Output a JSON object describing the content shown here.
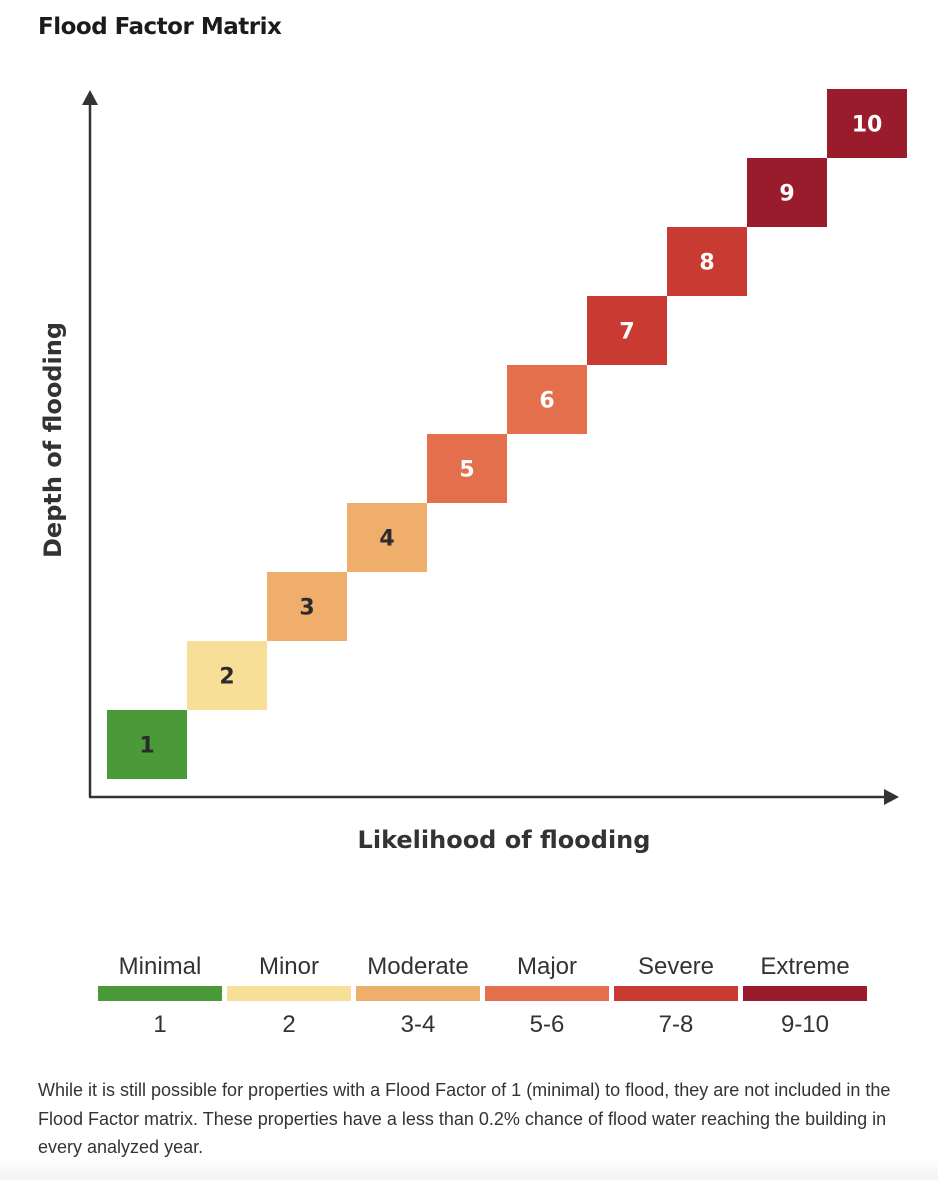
{
  "title": "Flood Factor Matrix",
  "chart_data": {
    "type": "heatmap",
    "xlabel": "Likelihood of flooding",
    "ylabel": "Depth of flooding",
    "cells": [
      {
        "label": "1",
        "level": 1,
        "color": "#4b9a3a",
        "text_color": "#2b2b2b"
      },
      {
        "label": "2",
        "level": 2,
        "color": "#f8df98",
        "text_color": "#2b2b2b"
      },
      {
        "label": "3",
        "level": 3,
        "color": "#f0ae6c",
        "text_color": "#2b2b2b"
      },
      {
        "label": "4",
        "level": 4,
        "color": "#f0ae6c",
        "text_color": "#2b2b2b"
      },
      {
        "label": "5",
        "level": 5,
        "color": "#e46f4c",
        "text_color": "#ffffff"
      },
      {
        "label": "6",
        "level": 6,
        "color": "#e46f4c",
        "text_color": "#ffffff"
      },
      {
        "label": "7",
        "level": 7,
        "color": "#c93b32",
        "text_color": "#ffffff"
      },
      {
        "label": "8",
        "level": 8,
        "color": "#c93b32",
        "text_color": "#ffffff"
      },
      {
        "label": "9",
        "level": 9,
        "color": "#9a1b2c",
        "text_color": "#ffffff"
      },
      {
        "label": "10",
        "level": 10,
        "color": "#9a1b2c",
        "text_color": "#ffffff"
      }
    ]
  },
  "legend": [
    {
      "name": "Minimal",
      "range": "1",
      "color": "#4b9a3a"
    },
    {
      "name": "Minor",
      "range": "2",
      "color": "#f8df98"
    },
    {
      "name": "Moderate",
      "range": "3-4",
      "color": "#f0ae6c"
    },
    {
      "name": "Major",
      "range": "5-6",
      "color": "#e46f4c"
    },
    {
      "name": "Severe",
      "range": "7-8",
      "color": "#c93b32"
    },
    {
      "name": "Extreme",
      "range": "9-10",
      "color": "#9a1b2c"
    }
  ],
  "note": "While it is still possible for properties with a Flood Factor of 1 (minimal) to flood, they are not included in the Flood Factor matrix. These properties have a less than 0.2% chance of flood water reaching the building in every analyzed year."
}
